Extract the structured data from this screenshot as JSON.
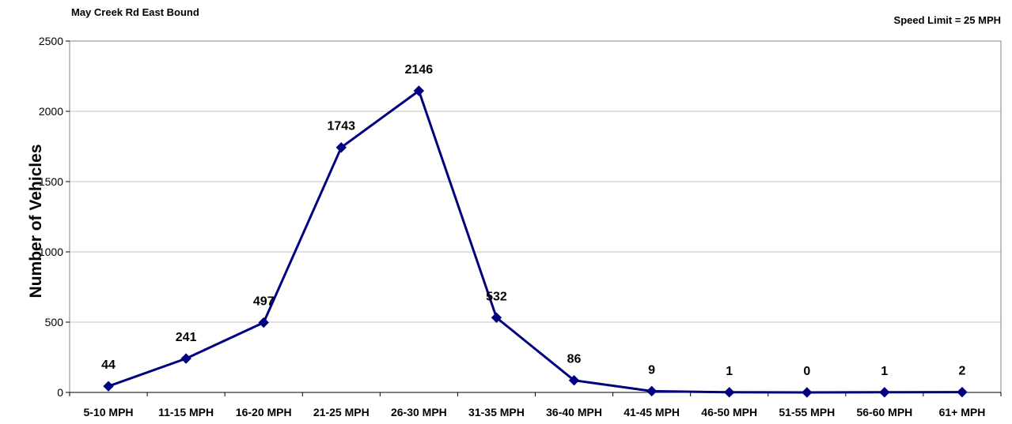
{
  "chart_data": {
    "type": "line",
    "title": "May Creek Rd East Bound",
    "subtitle": "Speed Limit = 25 MPH",
    "xlabel": "",
    "ylabel": "Number of Vehicles",
    "categories": [
      "5-10 MPH",
      "11-15 MPH",
      "16-20 MPH",
      "21-25 MPH",
      "26-30 MPH",
      "31-35 MPH",
      "36-40 MPH",
      "41-45 MPH",
      "46-50 MPH",
      "51-55 MPH",
      "56-60 MPH",
      "61+ MPH"
    ],
    "values": [
      44,
      241,
      497,
      1743,
      2146,
      532,
      86,
      9,
      1,
      0,
      1,
      2
    ],
    "data_labels": [
      "44",
      "241",
      "497",
      "1743",
      "2146",
      "532",
      "86",
      "9",
      "1",
      "0",
      "1",
      "2"
    ],
    "ylim": [
      0,
      2500
    ],
    "yticks": [
      0,
      500,
      1000,
      1500,
      2000,
      2500
    ],
    "ytick_labels": [
      "0",
      "500",
      "1000",
      "1500",
      "2000",
      "2500"
    ],
    "grid": true,
    "legend": "none",
    "line_color": "#000080",
    "grid_color": "#c0c0c0"
  }
}
